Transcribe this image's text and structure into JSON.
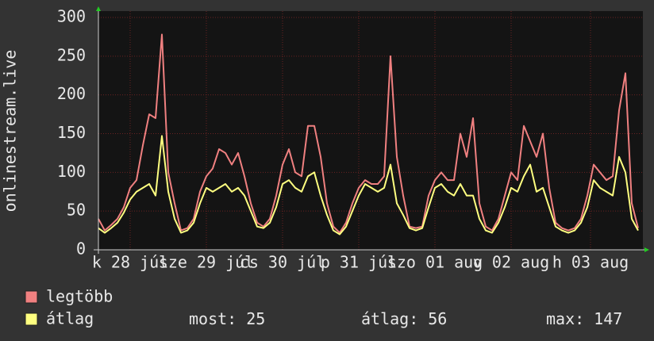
{
  "chart_data": {
    "type": "line",
    "y_label": "onlinestream.live",
    "x": [
      0,
      2,
      4,
      6,
      8,
      10,
      12,
      14,
      16,
      18,
      20,
      22,
      24,
      26,
      28,
      30,
      32,
      34,
      36,
      38,
      40,
      42,
      44,
      46,
      48,
      50,
      52,
      54,
      56,
      58,
      60,
      62,
      64,
      66,
      68,
      70,
      72,
      74,
      76,
      78,
      80,
      82,
      84,
      86,
      88,
      90,
      92,
      94,
      96,
      98,
      100,
      102,
      104,
      106,
      108,
      110,
      112,
      114,
      116,
      118,
      120,
      122,
      124,
      126,
      128,
      130,
      132,
      134,
      136,
      138,
      140,
      142,
      144,
      146,
      148,
      150,
      152,
      154,
      156,
      158,
      160,
      162,
      164,
      166,
      168,
      170
    ],
    "xlim": [
      0,
      171.5
    ],
    "xticks": [
      {
        "value": 10,
        "label": "k 28 júl"
      },
      {
        "value": 34,
        "label": "sze 29 júl"
      },
      {
        "value": 58,
        "label": "cs 30 júl"
      },
      {
        "value": 82,
        "label": "p 31 júl"
      },
      {
        "value": 106,
        "label": "szo 01 aug"
      },
      {
        "value": 130,
        "label": "v 02 aug"
      },
      {
        "value": 155,
        "label": "h 03 aug"
      }
    ],
    "ylim": [
      0,
      300
    ],
    "yticks": [
      0,
      50,
      100,
      150,
      200,
      250,
      300
    ],
    "grid": true,
    "series": [
      {
        "name": "legtöbb",
        "color": "#f08080",
        "values": [
          40,
          25,
          32,
          40,
          55,
          80,
          90,
          135,
          175,
          170,
          278,
          100,
          60,
          25,
          28,
          40,
          75,
          95,
          105,
          130,
          125,
          110,
          125,
          95,
          60,
          35,
          30,
          40,
          70,
          110,
          130,
          100,
          95,
          160,
          160,
          120,
          60,
          30,
          22,
          35,
          60,
          80,
          90,
          85,
          85,
          95,
          250,
          120,
          70,
          30,
          28,
          30,
          70,
          90,
          100,
          90,
          90,
          150,
          120,
          170,
          60,
          30,
          25,
          40,
          70,
          100,
          90,
          160,
          140,
          120,
          150,
          80,
          35,
          28,
          25,
          28,
          40,
          70,
          110,
          100,
          90,
          95,
          180,
          228,
          60,
          28
        ]
      },
      {
        "name": "átlag",
        "color": "#ffff80",
        "values": [
          28,
          22,
          28,
          35,
          48,
          65,
          75,
          80,
          85,
          70,
          147,
          75,
          40,
          22,
          25,
          35,
          60,
          80,
          75,
          80,
          85,
          75,
          80,
          70,
          50,
          30,
          28,
          35,
          55,
          85,
          90,
          80,
          75,
          95,
          100,
          70,
          45,
          25,
          20,
          30,
          50,
          70,
          85,
          80,
          75,
          80,
          110,
          60,
          45,
          28,
          25,
          28,
          55,
          80,
          85,
          75,
          70,
          85,
          70,
          70,
          40,
          25,
          22,
          35,
          55,
          80,
          75,
          95,
          110,
          75,
          80,
          55,
          30,
          25,
          22,
          25,
          35,
          55,
          90,
          80,
          75,
          70,
          120,
          100,
          40,
          25
        ]
      }
    ],
    "stats": [
      {
        "label": "most:",
        "value": 25
      },
      {
        "label": "átlag:",
        "value": 56
      },
      {
        "label": "max:",
        "value": 147
      }
    ]
  }
}
